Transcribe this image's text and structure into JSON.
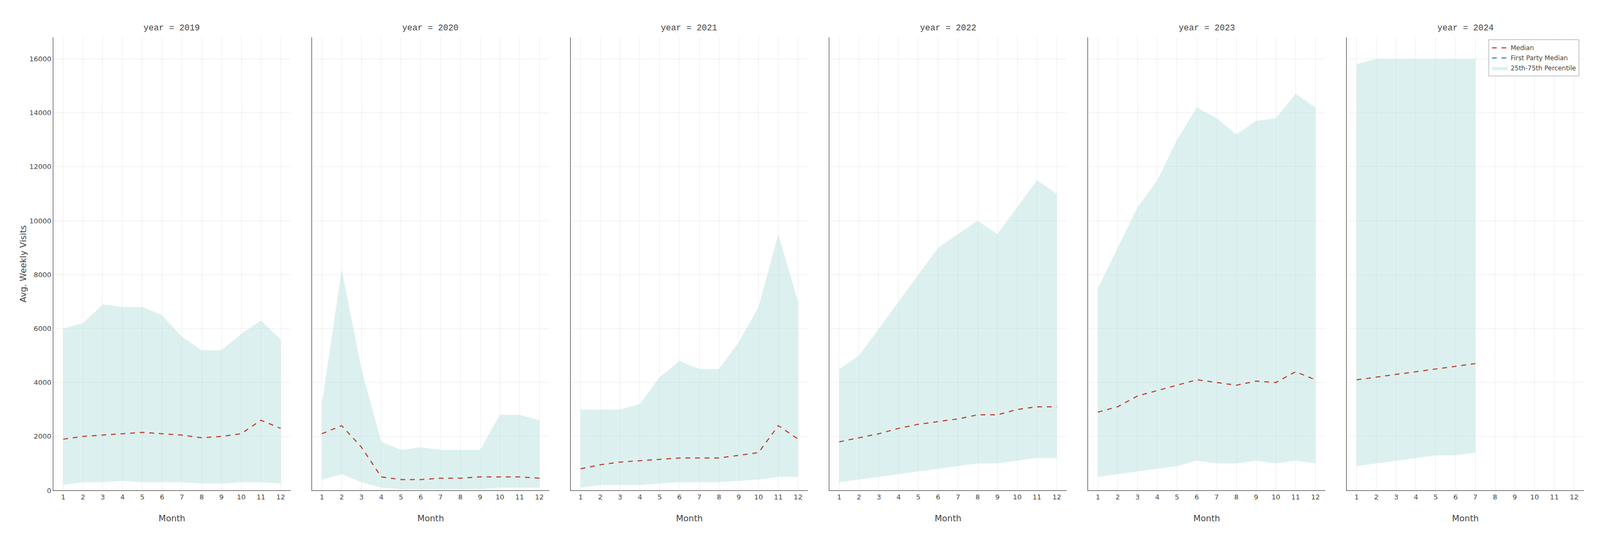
{
  "chart_data": [
    {
      "type": "line",
      "title": "year = 2019",
      "xlabel": "Month",
      "ylabel": "Avg. Weekly Visits",
      "x": [
        1,
        2,
        3,
        4,
        5,
        6,
        7,
        8,
        9,
        10,
        11,
        12
      ],
      "series": [
        {
          "name": "25th-75th Percentile",
          "type": "band",
          "color": "#b2dfdb",
          "lower": [
            200,
            300,
            300,
            350,
            300,
            300,
            300,
            250,
            250,
            300,
            300,
            250
          ],
          "upper": [
            6000,
            6200,
            6900,
            6800,
            6800,
            6500,
            5700,
            5200,
            5200,
            5800,
            6300,
            5600
          ]
        },
        {
          "name": "Median",
          "type": "line",
          "color": "#c0392b",
          "line_style": "dashed",
          "values": [
            1900,
            2000,
            2050,
            2100,
            2150,
            2100,
            2050,
            1950,
            2000,
            2100,
            2600,
            2300
          ]
        }
      ],
      "xlim": [
        0.5,
        12.5
      ],
      "xticks": [
        1,
        2,
        3,
        4,
        5,
        6,
        7,
        8,
        9,
        10,
        11,
        12
      ],
      "ylim": [
        0,
        16800
      ],
      "yticks": [
        0,
        2000,
        4000,
        6000,
        8000,
        10000,
        12000,
        14000,
        16000
      ],
      "grid": true
    },
    {
      "type": "line",
      "title": "year = 2020",
      "xlabel": "Month",
      "x": [
        1,
        2,
        3,
        4,
        5,
        6,
        7,
        8,
        9,
        10,
        11,
        12
      ],
      "series": [
        {
          "name": "25th-75th Percentile",
          "type": "band",
          "color": "#b2dfdb",
          "lower": [
            400,
            600,
            300,
            100,
            50,
            50,
            50,
            50,
            50,
            100,
            100,
            100
          ],
          "upper": [
            3200,
            8200,
            4500,
            1800,
            1500,
            1600,
            1500,
            1500,
            1500,
            2800,
            2800,
            2600
          ]
        },
        {
          "name": "Median",
          "type": "line",
          "color": "#c0392b",
          "line_style": "dashed",
          "values": [
            2100,
            2400,
            1600,
            500,
            400,
            400,
            450,
            450,
            500,
            500,
            500,
            450
          ]
        }
      ],
      "xlim": [
        0.5,
        12.5
      ],
      "xticks": [
        1,
        2,
        3,
        4,
        5,
        6,
        7,
        8,
        9,
        10,
        11,
        12
      ],
      "ylim": [
        0,
        16800
      ],
      "yticks": [
        0,
        2000,
        4000,
        6000,
        8000,
        10000,
        12000,
        14000,
        16000
      ],
      "grid": true,
      "tick_labels": "x"
    },
    {
      "type": "line",
      "title": "year = 2021",
      "xlabel": "Month",
      "x": [
        1,
        2,
        3,
        4,
        5,
        6,
        7,
        8,
        9,
        10,
        11,
        12
      ],
      "series": [
        {
          "name": "25th-75th Percentile",
          "type": "band",
          "color": "#b2dfdb",
          "lower": [
            100,
            200,
            200,
            200,
            250,
            300,
            300,
            300,
            350,
            400,
            500,
            500
          ],
          "upper": [
            3000,
            3000,
            3000,
            3200,
            4200,
            4800,
            4500,
            4500,
            5500,
            6800,
            9500,
            7000
          ]
        },
        {
          "name": "Median",
          "type": "line",
          "color": "#c0392b",
          "line_style": "dashed",
          "values": [
            800,
            950,
            1050,
            1100,
            1150,
            1200,
            1200,
            1200,
            1300,
            1400,
            2400,
            1900
          ]
        }
      ],
      "xlim": [
        0.5,
        12.5
      ],
      "xticks": [
        1,
        2,
        3,
        4,
        5,
        6,
        7,
        8,
        9,
        10,
        11,
        12
      ],
      "ylim": [
        0,
        16800
      ],
      "yticks": [
        0,
        2000,
        4000,
        6000,
        8000,
        10000,
        12000,
        14000,
        16000
      ],
      "grid": true,
      "tick_labels": "x"
    },
    {
      "type": "line",
      "title": "year = 2022",
      "xlabel": "Month",
      "x": [
        1,
        2,
        3,
        4,
        5,
        6,
        7,
        8,
        9,
        10,
        11,
        12
      ],
      "series": [
        {
          "name": "25th-75th Percentile",
          "type": "band",
          "color": "#b2dfdb",
          "lower": [
            300,
            400,
            500,
            600,
            700,
            800,
            900,
            1000,
            1000,
            1100,
            1200,
            1200
          ],
          "upper": [
            4500,
            5000,
            6000,
            7000,
            8000,
            9000,
            9500,
            10000,
            9500,
            10500,
            11500,
            11000
          ]
        },
        {
          "name": "Median",
          "type": "line",
          "color": "#c0392b",
          "line_style": "dashed",
          "values": [
            1800,
            1950,
            2100,
            2300,
            2450,
            2550,
            2650,
            2800,
            2800,
            3000,
            3100,
            3100
          ]
        }
      ],
      "xlim": [
        0.5,
        12.5
      ],
      "xticks": [
        1,
        2,
        3,
        4,
        5,
        6,
        7,
        8,
        9,
        10,
        11,
        12
      ],
      "ylim": [
        0,
        16800
      ],
      "yticks": [
        0,
        2000,
        4000,
        6000,
        8000,
        10000,
        12000,
        14000,
        16000
      ],
      "grid": true,
      "tick_labels": "x"
    },
    {
      "type": "line",
      "title": "year = 2023",
      "xlabel": "Month",
      "x": [
        1,
        2,
        3,
        4,
        5,
        6,
        7,
        8,
        9,
        10,
        11,
        12
      ],
      "series": [
        {
          "name": "25th-75th Percentile",
          "type": "band",
          "color": "#b2dfdb",
          "lower": [
            500,
            600,
            700,
            800,
            900,
            1100,
            1000,
            1000,
            1100,
            1000,
            1100,
            1000
          ],
          "upper": [
            7500,
            9000,
            10500,
            11500,
            13000,
            14200,
            13800,
            13200,
            13700,
            13800,
            14700,
            14200
          ]
        },
        {
          "name": "Median",
          "type": "line",
          "color": "#c0392b",
          "line_style": "dashed",
          "values": [
            2900,
            3100,
            3500,
            3700,
            3900,
            4100,
            4000,
            3900,
            4050,
            4000,
            4400,
            4100
          ]
        }
      ],
      "xlim": [
        0.5,
        12.5
      ],
      "xticks": [
        1,
        2,
        3,
        4,
        5,
        6,
        7,
        8,
        9,
        10,
        11,
        12
      ],
      "ylim": [
        0,
        16800
      ],
      "yticks": [
        0,
        2000,
        4000,
        6000,
        8000,
        10000,
        12000,
        14000,
        16000
      ],
      "grid": true,
      "tick_labels": "x"
    },
    {
      "type": "line",
      "title": "year = 2024",
      "xlabel": "Month",
      "x": [
        1,
        2,
        3,
        4,
        5,
        6,
        7
      ],
      "series": [
        {
          "name": "25th-75th Percentile",
          "type": "band",
          "color": "#b2dfdb",
          "legend_order": 3,
          "lower": [
            900,
            1000,
            1100,
            1200,
            1300,
            1300,
            1400
          ],
          "upper": [
            15800,
            16000,
            16000,
            16000,
            16000,
            16000,
            16000
          ]
        },
        {
          "name": "Median",
          "type": "line",
          "color": "#c0392b",
          "line_style": "dashed",
          "legend_order": 1,
          "values": [
            4100,
            4200,
            4300,
            4400,
            4500,
            4600,
            4700
          ]
        },
        {
          "name": "First Party Median",
          "type": "line",
          "color": "#2980b9",
          "line_style": "dashed",
          "legend_order": 2,
          "values": [
            null,
            null,
            null,
            null,
            null,
            null,
            null
          ]
        }
      ],
      "xlim": [
        0.5,
        12.5
      ],
      "xticks": [
        1,
        2,
        3,
        4,
        5,
        6,
        7,
        8,
        9,
        10,
        11,
        12
      ],
      "ylim": [
        0,
        16800
      ],
      "yticks": [
        0,
        2000,
        4000,
        6000,
        8000,
        10000,
        12000,
        14000,
        16000
      ],
      "grid": true,
      "tick_labels": "x",
      "legend": "upper right"
    }
  ]
}
